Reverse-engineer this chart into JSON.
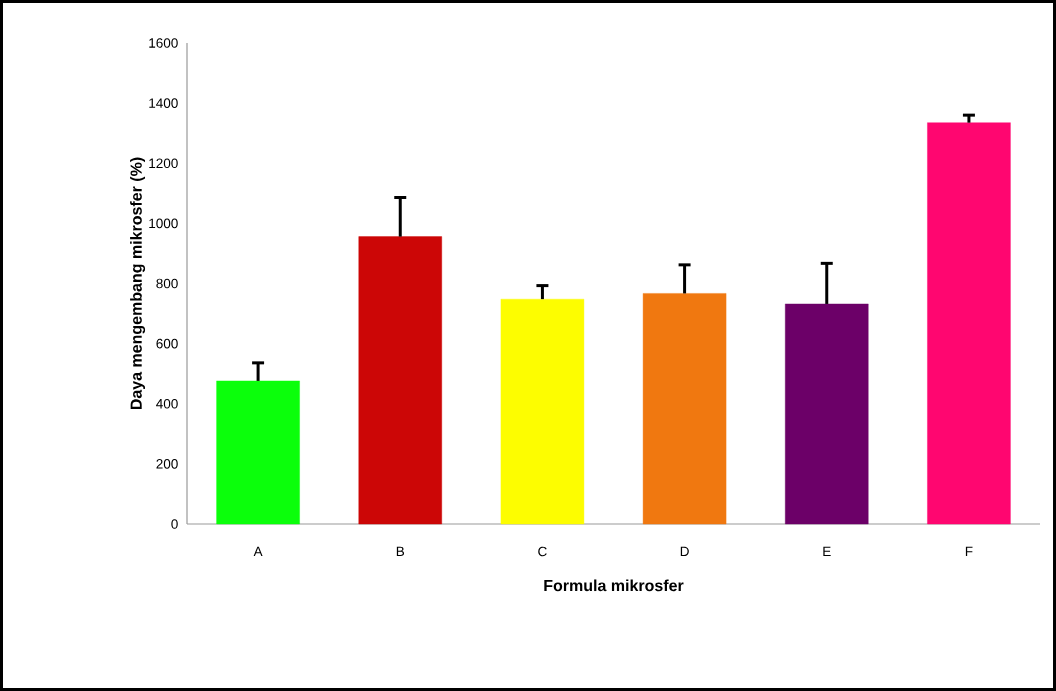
{
  "chart_data": {
    "type": "bar",
    "xlabel": "Formula mikrosfer",
    "ylabel": "Daya mengembang mikrosfer (%)",
    "categories": [
      "A",
      "B",
      "C",
      "D",
      "E",
      "F"
    ],
    "values": [
      476,
      956,
      748,
      767,
      732,
      1335
    ],
    "errors": [
      60,
      130,
      45,
      95,
      135,
      25
    ],
    "colors": [
      "#0bff0b",
      "#cc0606",
      "#fdfd00",
      "#f07810",
      "#6c0068",
      "#ff0670"
    ],
    "ylim": [
      0,
      1600
    ],
    "yticks": [
      0,
      200,
      400,
      600,
      800,
      1000,
      1200,
      1400,
      1600
    ],
    "grid": false
  }
}
